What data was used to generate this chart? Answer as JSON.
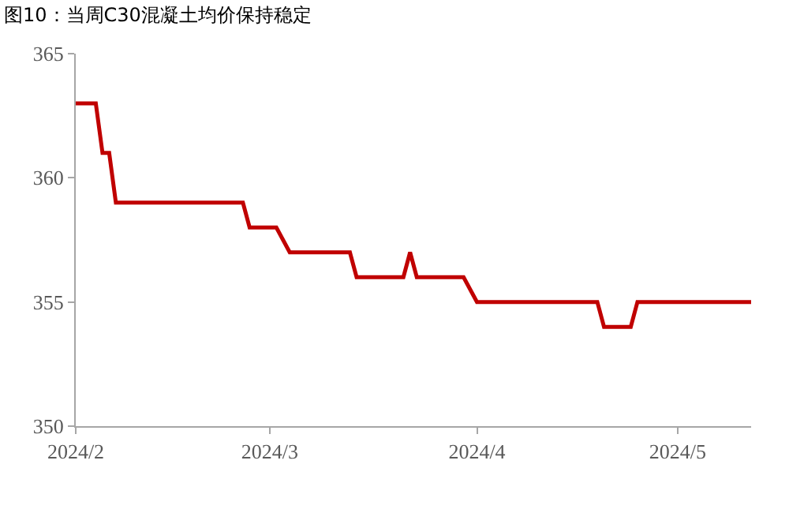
{
  "chart_data": {
    "type": "line",
    "title": "图10：当周C30混凝土均价保持稳定",
    "x": [
      "2024-02-01",
      "2024-02-04",
      "2024-02-05",
      "2024-02-06",
      "2024-02-07",
      "2024-02-26",
      "2024-02-27",
      "2024-03-02",
      "2024-03-04",
      "2024-03-13",
      "2024-03-14",
      "2024-03-21",
      "2024-03-22",
      "2024-03-23",
      "2024-03-30",
      "2024-04-01",
      "2024-04-19",
      "2024-04-20",
      "2024-04-24",
      "2024-04-25",
      "2024-05-12"
    ],
    "series": [
      {
        "color": "#c00000",
        "values": [
          363,
          363,
          361,
          361,
          359,
          359,
          358,
          358,
          357,
          357,
          356,
          356,
          357,
          356,
          356,
          355,
          355,
          354,
          354,
          355,
          355
        ]
      }
    ],
    "xlim": [
      "2024-02-01",
      "2024-05-12"
    ],
    "xticks": [
      {
        "value": "2024-02-01",
        "label": "2024/2"
      },
      {
        "value": "2024-03-01",
        "label": "2024/3"
      },
      {
        "value": "2024-04-01",
        "label": "2024/4"
      },
      {
        "value": "2024-05-01",
        "label": "2024/5"
      }
    ],
    "ylim": [
      350,
      365
    ],
    "yticks": [
      350,
      355,
      360,
      365
    ],
    "grid": false,
    "marker": "none",
    "line_style": "solid"
  }
}
